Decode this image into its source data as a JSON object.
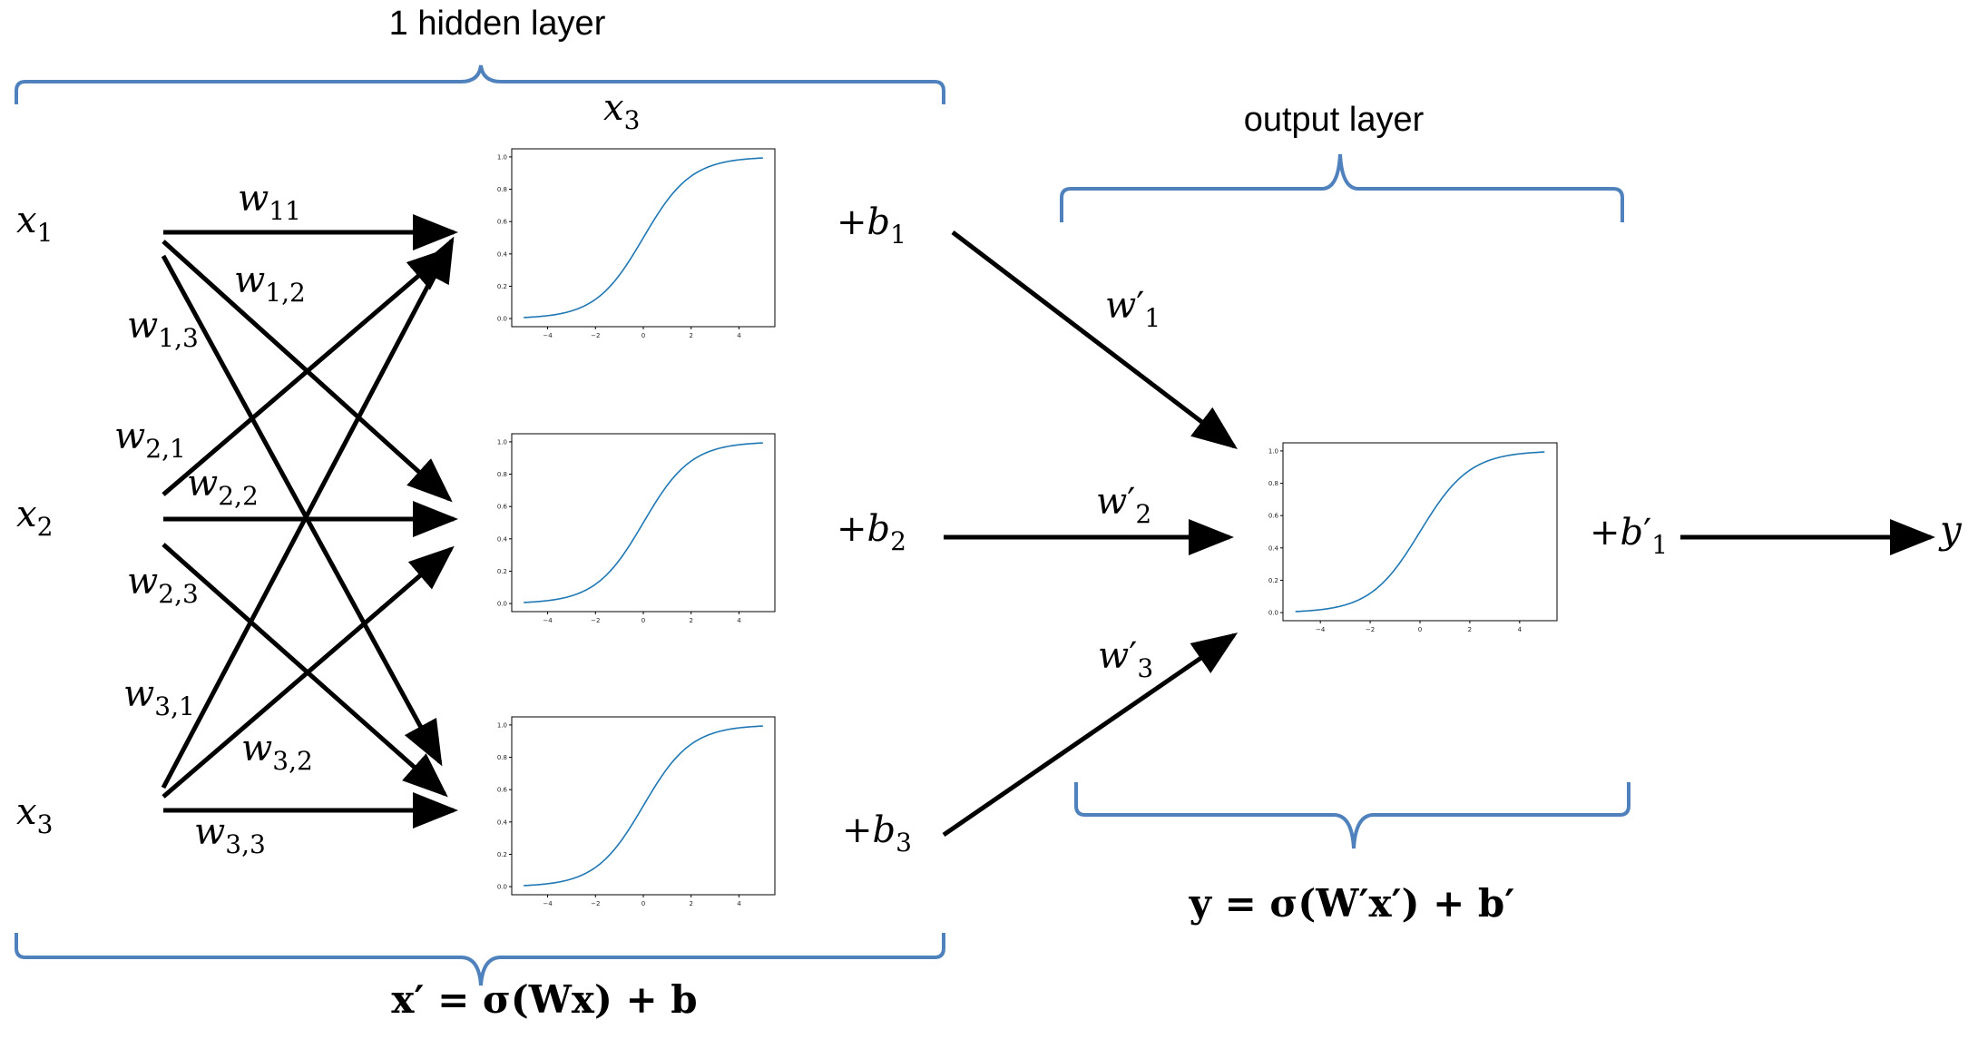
{
  "colors": {
    "brace": "#4f81bd",
    "curve": "#1f77b4",
    "arrow": "#000000",
    "axes": "#000000"
  },
  "captions": {
    "hidden_layer": "1 hidden layer",
    "output_layer": "output layer"
  },
  "top_neuron_label": {
    "base": "x",
    "sub": "3"
  },
  "inputs": [
    {
      "base": "x",
      "sub": "1"
    },
    {
      "base": "x",
      "sub": "2"
    },
    {
      "base": "x",
      "sub": "3"
    }
  ],
  "weights": {
    "w11": {
      "base": "w",
      "sub": "11"
    },
    "w12": {
      "base": "w",
      "sub": "1,2"
    },
    "w13": {
      "base": "w",
      "sub": "1,3"
    },
    "w21": {
      "base": "w",
      "sub": "2,1"
    },
    "w22": {
      "base": "w",
      "sub": "2,2"
    },
    "w23": {
      "base": "w",
      "sub": "2,3"
    },
    "w31": {
      "base": "w",
      "sub": "3,1"
    },
    "w32": {
      "base": "w",
      "sub": "3,2"
    },
    "w33": {
      "base": "w",
      "sub": "3,3"
    }
  },
  "biases": [
    {
      "prefix": "+",
      "base": "b",
      "sub": "1"
    },
    {
      "prefix": "+",
      "base": "b",
      "sub": "2"
    },
    {
      "prefix": "+",
      "base": "b",
      "sub": "3"
    }
  ],
  "output_weights": [
    {
      "base": "w",
      "prime": "′",
      "sub": "1"
    },
    {
      "base": "w",
      "prime": "′",
      "sub": "2"
    },
    {
      "base": "w",
      "prime": "′",
      "sub": "3"
    }
  ],
  "output_bias": {
    "prefix": "+",
    "base": "b",
    "prime": "′",
    "sub": "1"
  },
  "output_var": "y",
  "equations": {
    "hidden": "x′ =  σ(Wx) + b",
    "output": "y =  σ(W′x′) + b′"
  },
  "sigmoid_plot": {
    "type": "line",
    "function": "sigmoid",
    "xlim": [
      -5,
      5
    ],
    "ylim": [
      0.0,
      1.0
    ],
    "xticks": [
      "−4",
      "−2",
      "0",
      "2",
      "4"
    ],
    "yticks": [
      "0.0",
      "0.2",
      "0.4",
      "0.6",
      "0.8",
      "1.0"
    ]
  }
}
